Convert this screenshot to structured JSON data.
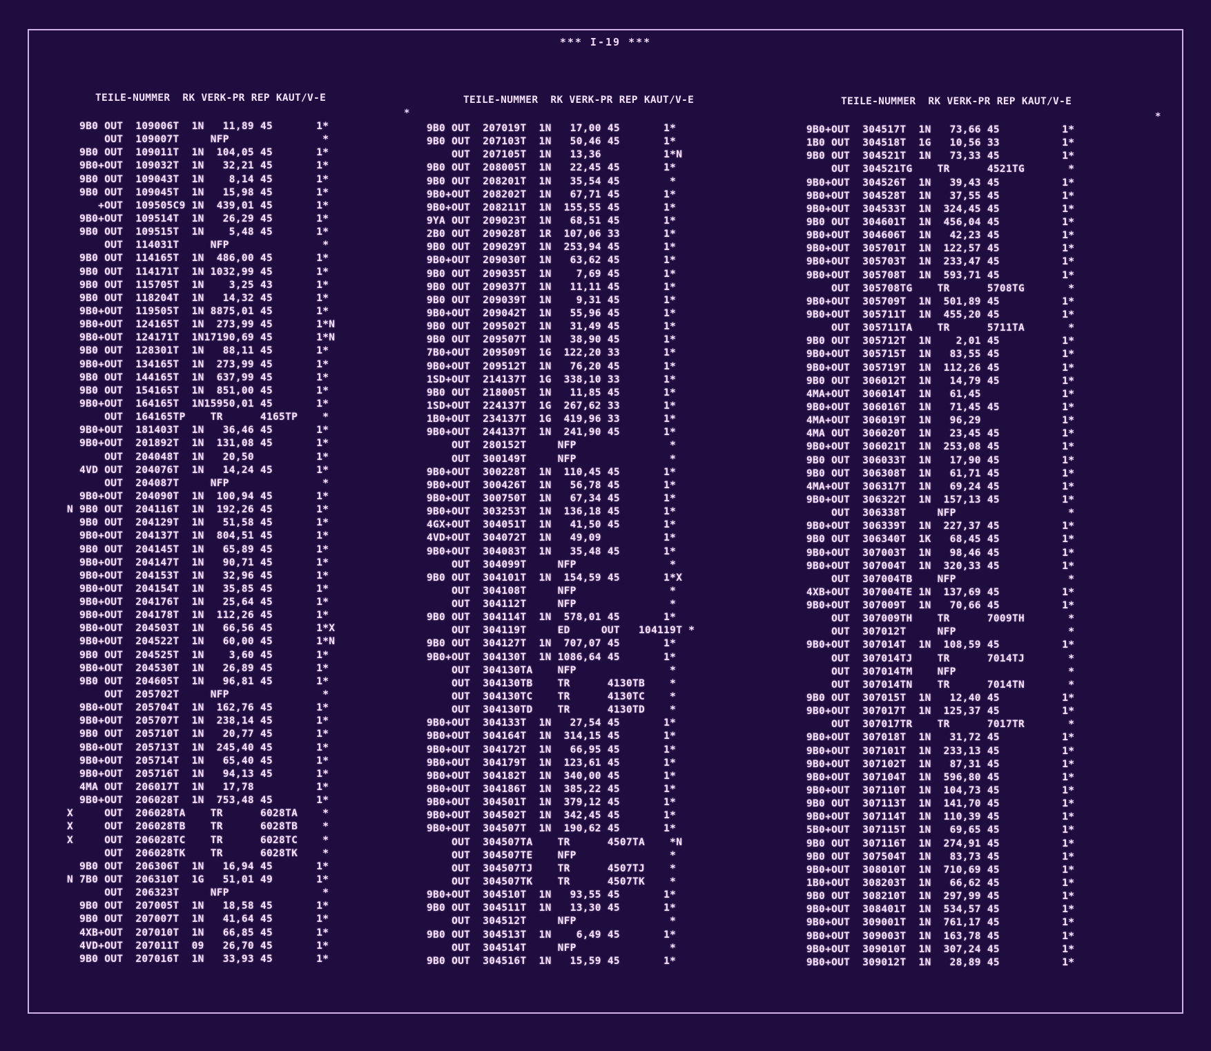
{
  "title": "*** I-19 ***",
  "columns": [
    {
      "header": "TEILE-NUMMER  RK VERK-PR REP KAUT/V-E",
      "lead": "*",
      "rows": [
        "   9B0 OUT  109006T  1N   11,89 45       1*",
        "       OUT  109007T     NFP               *",
        "   9B0 OUT  109011T  1N  104,05 45       1*",
        "   9B0+OUT  109032T  1N   32,21 45       1*",
        "   9B0 OUT  109043T  1N    8,14 45       1*",
        "   9B0 OUT  109045T  1N   15,98 45       1*",
        "      +OUT  109505C9 1N  439,01 45       1*",
        "   9B0+OUT  109514T  1N   26,29 45       1*",
        "   9B0 OUT  109515T  1N    5,48 45       1*",
        "       OUT  114031T     NFP               *",
        "   9B0 OUT  114165T  1N  486,00 45       1*",
        "   9B0 OUT  114171T  1N 1032,99 45       1*",
        "   9B0 OUT  115705T  1N    3,25 43       1*",
        "   9B0 OUT  118204T  1N   14,32 45       1*",
        "   9B0+OUT  119505T  1N 8875,01 45       1*",
        "   9B0+OUT  124165T  1N  273,99 45       1*N",
        "   9B0+OUT  124171T  1N17190,69 45       1*N",
        "   9B0 OUT  128301T  1N   88,11 45       1*",
        "   9B0+OUT  134165T  1N  273,99 45       1*",
        "   9B0 OUT  144165T  1N  637,99 45       1*",
        "   9B0 OUT  154165T  1N  851,00 45       1*",
        "   9B0+OUT  164165T  1N15950,01 45       1*",
        "       OUT  164165TP    TR      4165TP    *",
        "   9B0+OUT  181403T  1N   36,46 45       1*",
        "   9B0+OUT  201892T  1N  131,08 45       1*",
        "       OUT  204048T  1N   20,50          1*",
        "   4VD OUT  204076T  1N   14,24 45       1*",
        "       OUT  204087T     NFP               *",
        "   9B0+OUT  204090T  1N  100,94 45       1*",
        " N 9B0 OUT  204116T  1N  192,26 45       1*",
        "   9B0 OUT  204129T  1N   51,58 45       1*",
        "   9B0+OUT  204137T  1N  804,51 45       1*",
        "   9B0 OUT  204145T  1N   65,89 45       1*",
        "   9B0+OUT  204147T  1N   90,71 45       1*",
        "   9B0+OUT  204153T  1N   32,96 45       1*",
        "   9B0+OUT  204154T  1N   35,85 45       1*",
        "   9B0+OUT  204176T  1N   25,64 45       1*",
        "   9B0+OUT  204178T  1N  112,26 45       1*",
        "   9B0+OUT  204503T  1N   66,56 45       1*X",
        "   9B0+OUT  204522T  1N   60,00 45       1*N",
        "   9B0 OUT  204525T  1N    3,60 45       1*",
        "   9B0+OUT  204530T  1N   26,89 45       1*",
        "   9B0 OUT  204605T  1N   96,81 45       1*",
        "       OUT  205702T     NFP               *",
        "   9B0+OUT  205704T  1N  162,76 45       1*",
        "   9B0+OUT  205707T  1N  238,14 45       1*",
        "   9B0 OUT  205710T  1N   20,77 45       1*",
        "   9B0+OUT  205713T  1N  245,40 45       1*",
        "   9B0+OUT  205714T  1N   65,40 45       1*",
        "   9B0+OUT  205716T  1N   94,13 45       1*",
        "   4MA OUT  206017T  1N   17,78          1*",
        "   9B0+OUT  206028T  1N  753,48 45       1*",
        " X     OUT  206028TA    TR      6028TA    *",
        " X     OUT  206028TB    TR      6028TB    *",
        " X     OUT  206028TC    TR      6028TC    *",
        "       OUT  206028TK    TR      6028TK    *",
        "   9B0 OUT  206306T  1N   16,94 45       1*",
        " N 7B0 OUT  206310T  1G   51,01 49       1*",
        "       OUT  206323T     NFP               *",
        "   9B0 OUT  207005T  1N   18,58 45       1*",
        "   9B0 OUT  207007T  1N   41,64 45       1*",
        "   4XB+OUT  207010T  1N   66,85 45       1*",
        "   4VD+OUT  207011T  09   26,70 45       1*",
        "   9B0 OUT  207016T  1N   33,93 45       1*"
      ]
    },
    {
      "header": "TEILE-NUMMER  RK VERK-PR REP KAUT/V-E",
      "lead": "",
      "rows": [
        "9B0 OUT  207019T  1N   17,00 45       1*",
        "9B0 OUT  207103T  1N   50,46 45       1*",
        "    OUT  207105T  1N   13,36          1*N",
        "9B0 OUT  208005T  1N   22,45 45       1*",
        "9B0 OUT  208201T  1N   35,54 45        *",
        "9B0+OUT  208202T  1N   67,71 45       1*",
        "9B0+OUT  208211T  1N  155,55 45       1*",
        "9YA OUT  209023T  1N   68,51 45       1*",
        "2B0 OUT  209028T  1R  107,06 33       1*",
        "9B0 OUT  209029T  1N  253,94 45       1*",
        "9B0+OUT  209030T  1N   63,62 45       1*",
        "9B0 OUT  209035T  1N    7,69 45       1*",
        "9B0 OUT  209037T  1N   11,11 45       1*",
        "9B0 OUT  209039T  1N    9,31 45       1*",
        "9B0+OUT  209042T  1N   55,96 45       1*",
        "9B0 OUT  209502T  1N   31,49 45       1*",
        "9B0 OUT  209507T  1N   38,90 45       1*",
        "7B0+OUT  209509T  1G  122,20 33       1*",
        "9B0+OUT  209512T  1N   76,20 45       1*",
        "1SD+OUT  214137T  1G  338,10 33       1*",
        "9B0 OUT  218005T  1N   11,85 45       1*",
        "1SD+OUT  224137T  1G  267,62 33       1*",
        "1B0+OUT  234137T  1G  419,96 33       1*",
        "9B0+OUT  244137T  1N  241,90 45       1*",
        "    OUT  280152T     NFP               *",
        "    OUT  300149T     NFP               *",
        "9B0+OUT  300228T  1N  110,45 45       1*",
        "9B0+OUT  300426T  1N   56,78 45       1*",
        "9B0+OUT  300750T  1N   67,34 45       1*",
        "9B0+OUT  303253T  1N  136,18 45       1*",
        "4GX+OUT  304051T  1N   41,50 45       1*",
        "4VD+OUT  304072T  1N   49,09          1*",
        "9B0+OUT  304083T  1N   35,48 45       1*",
        "    OUT  304099T     NFP               *",
        "9B0 OUT  304101T  1N  154,59 45       1*X",
        "    OUT  304108T     NFP               *",
        "    OUT  304112T     NFP               *",
        "9B0 OUT  304114T  1N  578,01 45       1*",
        "    OUT  304119T     ED     OUT   104119T *",
        "9B0 OUT  304127T  1N  707,07 45       1*",
        "9B0+OUT  304130T  1N 1086,64 45       1*",
        "    OUT  304130TA    NFP               *",
        "    OUT  304130TB    TR      4130TB    *",
        "    OUT  304130TC    TR      4130TC    *",
        "    OUT  304130TD    TR      4130TD    *",
        "9B0+OUT  304133T  1N   27,54 45       1*",
        "9B0+OUT  304164T  1N  314,15 45       1*",
        "9B0+OUT  304172T  1N   66,95 45       1*",
        "9B0+OUT  304179T  1N  123,61 45       1*",
        "9B0+OUT  304182T  1N  340,00 45       1*",
        "9B0+OUT  304186T  1N  385,22 45       1*",
        "9B0+OUT  304501T  1N  379,12 45       1*",
        "9B0+OUT  304502T  1N  342,45 45       1*",
        "9B0+OUT  304507T  1N  190,62 45       1*",
        "    OUT  304507TA    TR      4507TA    *N",
        "    OUT  304507TE    NFP               *",
        "    OUT  304507TJ    TR      4507TJ    *",
        "    OUT  304507TK    TR      4507TK    *",
        "9B0+OUT  304510T  1N   93,55 45       1*",
        "9B0 OUT  304511T  1N   13,30 45       1*",
        "    OUT  304512T     NFP               *",
        "9B0 OUT  304513T  1N    6,49 45       1*",
        "    OUT  304514T     NFP               *",
        "9B0 OUT  304516T  1N   15,59 45       1*"
      ]
    },
    {
      "header": "TEILE-NUMMER  RK VERK-PR REP KAUT/V-E",
      "lead": "*",
      "rows": [
        "9B0+OUT  304517T  1N   73,66 45          1*",
        "1B0 OUT  304518T  1G   10,56 33          1*",
        "9B0 OUT  304521T  1N   73,33 45          1*",
        "    OUT  304521TG    TR      4521TG       *",
        "9B0+OUT  304526T  1N   39,43 45          1*",
        "9B0+OUT  304528T  1N   37,55 45          1*",
        "9B0+OUT  304533T  1N  324,45 45          1*",
        "9B0 OUT  304601T  1N  456,04 45          1*",
        "9B0+OUT  304606T  1N   42,23 45          1*",
        "9B0+OUT  305701T  1N  122,57 45          1*",
        "9B0+OUT  305703T  1N  233,47 45          1*",
        "9B0+OUT  305708T  1N  593,71 45          1*",
        "    OUT  305708TG    TR      5708TG       *",
        "9B0+OUT  305709T  1N  501,89 45          1*",
        "9B0+OUT  305711T  1N  455,20 45          1*",
        "    OUT  305711TA    TR      5711TA       *",
        "9B0 OUT  305712T  1N    2,01 45          1*",
        "9B0+OUT  305715T  1N   83,55 45          1*",
        "9B0+OUT  305719T  1N  112,26 45          1*",
        "9B0 OUT  306012T  1N   14,79 45          1*",
        "4MA+OUT  306014T  1N   61,45             1*",
        "9B0+OUT  306016T  1N   71,45 45          1*",
        "4MA+OUT  306019T  1N   96,29             1*",
        "4MA OUT  306020T  1N   23,45 45          1*",
        "9B0+OUT  306021T  1N  253,08 45          1*",
        "9B0 OUT  306033T  1N   17,90 45          1*",
        "9B0 OUT  306308T  1N   61,71 45          1*",
        "4MA+OUT  306317T  1N   69,24 45          1*",
        "9B0+OUT  306322T  1N  157,13 45          1*",
        "    OUT  306338T     NFP                  *",
        "9B0+OUT  306339T  1N  227,37 45          1*",
        "9B0 OUT  306340T  1K   68,45 45          1*",
        "9B0+OUT  307003T  1N   98,46 45          1*",
        "9B0+OUT  307004T  1N  320,33 45          1*",
        "    OUT  307004TB    NFP                  *",
        "4XB+OUT  307004TE 1N  137,69 45          1*",
        "9B0+OUT  307009T  1N   70,66 45          1*",
        "    OUT  307009TH    TR      7009TH       *",
        "    OUT  307012T     NFP                  *",
        "9B0+OUT  307014T  1N  108,59 45          1*",
        "    OUT  307014TJ    TR      7014TJ       *",
        "    OUT  307014TM    NFP                  *",
        "    OUT  307014TN    TR      7014TN       *",
        "9B0 OUT  307015T  1N   12,40 45          1*",
        "9B0+OUT  307017T  1N  125,37 45          1*",
        "    OUT  307017TR    TR      7017TR       *",
        "9B0+OUT  307018T  1N   31,72 45          1*",
        "9B0+OUT  307101T  1N  233,13 45          1*",
        "9B0+OUT  307102T  1N   87,31 45          1*",
        "9B0+OUT  307104T  1N  596,80 45          1*",
        "9B0+OUT  307110T  1N  104,73 45          1*",
        "9B0 OUT  307113T  1N  141,70 45          1*",
        "9B0+OUT  307114T  1N  110,39 45          1*",
        "5B0+OUT  307115T  1N   69,65 45          1*",
        "9B0 OUT  307116T  1N  274,91 45          1*",
        "9B0 OUT  307504T  1N   83,73 45          1*",
        "9B0+OUT  308010T  1N  710,69 45          1*",
        "1B0+OUT  308203T  1N   66,62 45          1*",
        "9B0 OUT  308210T  1N  297,99 45          1*",
        "9B0+OUT  308401T  1N  534,57 45          1*",
        "9B0+OUT  309001T  1N  761,17 45          1*",
        "9B0+OUT  309003T  1N  163,78 45          1*",
        "9B0+OUT  309010T  1N  307,24 45          1*",
        "9B0+OUT  309012T  1N   28,89 45          1*"
      ]
    }
  ]
}
